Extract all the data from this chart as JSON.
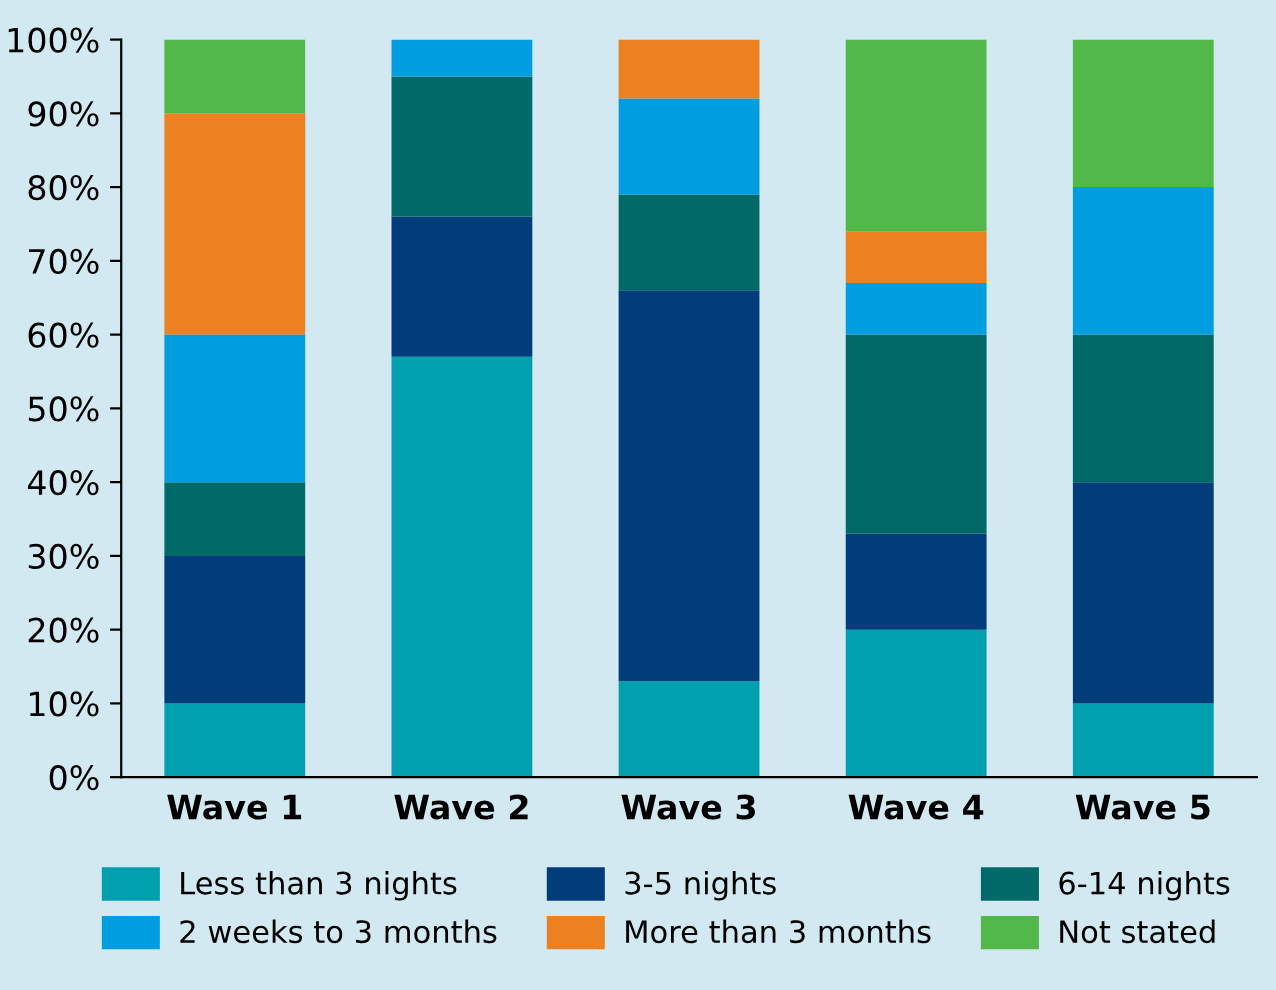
{
  "chart_data": {
    "type": "bar",
    "stacked": true,
    "categories": [
      "Wave 1",
      "Wave 2",
      "Wave 3",
      "Wave 4",
      "Wave 5"
    ],
    "series": [
      {
        "name": "Less than 3 nights",
        "color": "#00a0ae",
        "values": [
          10,
          57,
          13,
          20,
          10
        ]
      },
      {
        "name": "3-5 nights",
        "color": "#003d7a",
        "values": [
          20,
          19,
          53,
          13,
          30
        ]
      },
      {
        "name": "6-14 nights",
        "color": "#006a68",
        "values": [
          10,
          19,
          13,
          27,
          20
        ]
      },
      {
        "name": "2 weeks to 3 months",
        "color": "#009ee0",
        "values": [
          20,
          5,
          13,
          7,
          20
        ]
      },
      {
        "name": "More than 3 months",
        "color": "#ec8122",
        "values": [
          30,
          0,
          8,
          7,
          0
        ]
      },
      {
        "name": "Not stated",
        "color": "#52b84a",
        "values": [
          10,
          0,
          0,
          26,
          20
        ]
      }
    ],
    "ylim": [
      0,
      100
    ],
    "yticks": [
      {
        "value": 0,
        "label": "0%"
      },
      {
        "value": 10,
        "label": "10%"
      },
      {
        "value": 20,
        "label": "20%"
      },
      {
        "value": 30,
        "label": "30%"
      },
      {
        "value": 40,
        "label": "40%"
      },
      {
        "value": 50,
        "label": "50%"
      },
      {
        "value": 60,
        "label": "60%"
      },
      {
        "value": 70,
        "label": "70%"
      },
      {
        "value": 80,
        "label": "80%"
      },
      {
        "value": 90,
        "label": "90%"
      },
      {
        "value": 100,
        "label": "100%"
      }
    ],
    "grid": false,
    "legend": "bottom"
  }
}
